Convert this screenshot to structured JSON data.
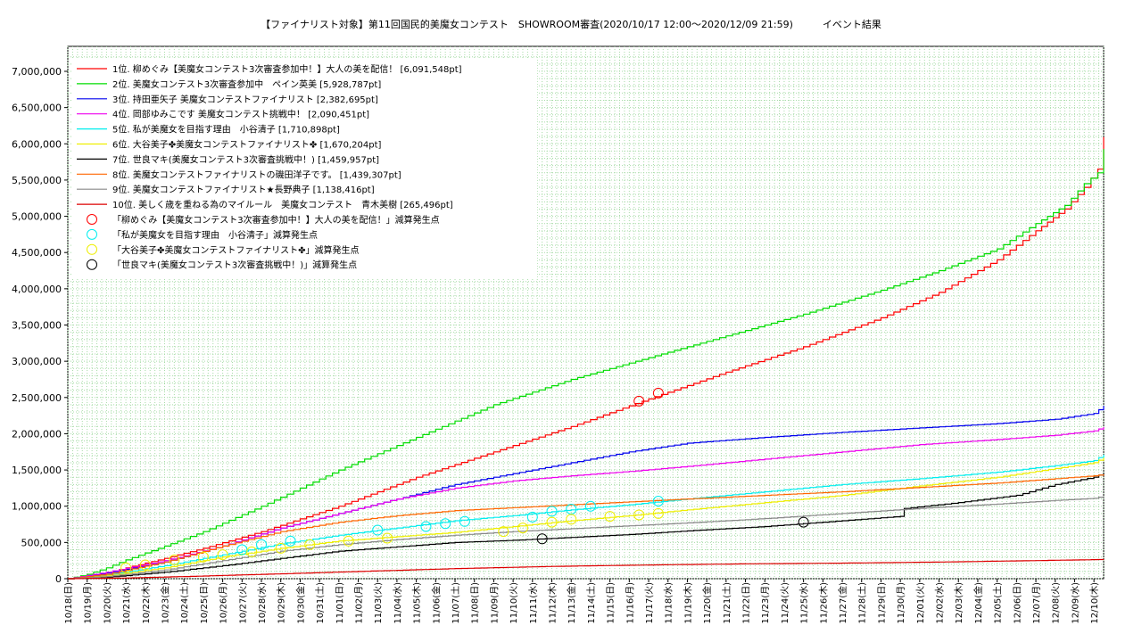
{
  "chart_data": {
    "type": "line",
    "title": "【ファイナリスト対象】第11回国民的美魔女コンテスト　SHOWROOM審査(2020/10/17 12:00〜2020/12/09 21:59)　　　イベント結果",
    "xlabel": "",
    "ylabel": "",
    "ylim": [
      0,
      7000000
    ],
    "y_ticks": [
      0,
      500000,
      1000000,
      1500000,
      2000000,
      2500000,
      3000000,
      3500000,
      4000000,
      4500000,
      5000000,
      5500000,
      6000000,
      6500000,
      7000000
    ],
    "y_tick_labels": [
      "0",
      "500,000",
      "1,000,000",
      "1,500,000",
      "2,000,000",
      "2,500,000",
      "3,000,000",
      "3,500,000",
      "4,000,000",
      "4,500,000",
      "5,000,000",
      "5,500,000",
      "6,000,000",
      "6,500,000",
      "7,000,000"
    ],
    "x_domain_days": [
      0,
      53.5
    ],
    "x_ticks": [
      "10/18(日)",
      "10/19(月)",
      "10/20(火)",
      "10/21(水)",
      "10/22(木)",
      "10/23(金)",
      "10/24(土)",
      "10/25(日)",
      "10/26(月)",
      "10/27(火)",
      "10/28(水)",
      "10/29(木)",
      "10/30(金)",
      "10/31(土)",
      "11/01(日)",
      "11/02(月)",
      "11/03(火)",
      "11/04(水)",
      "11/05(木)",
      "11/06(金)",
      "11/07(土)",
      "11/08(日)",
      "11/09(月)",
      "11/10(火)",
      "11/11(水)",
      "11/12(木)",
      "11/13(金)",
      "11/14(土)",
      "11/15(日)",
      "11/16(月)",
      "11/17(火)",
      "11/18(水)",
      "11/19(木)",
      "11/20(金)",
      "11/21(土)",
      "11/22(日)",
      "11/23(月)",
      "11/24(火)",
      "11/25(水)",
      "11/26(木)",
      "11/27(金)",
      "11/28(土)",
      "11/29(日)",
      "11/30(月)",
      "12/01(火)",
      "12/02(水)",
      "12/03(木)",
      "12/04(金)",
      "12/05(土)",
      "12/06(日)",
      "12/07(月)",
      "12/08(火)",
      "12/09(水)",
      "12/10(木)"
    ],
    "grid": true,
    "legend_position": "top-left",
    "series": [
      {
        "name": "1位. 柳めぐみ【美魔女コンテスト3次審査参加中！】大人の美を配信！ [6,091,548pt]",
        "color": "#ff0000",
        "x": [
          0.0,
          1.0,
          2.0,
          3.0,
          5.0,
          7.0,
          10.0,
          14.0,
          18.0,
          22.0,
          26.0,
          30.0,
          34.0,
          38.0,
          42.0,
          45.0,
          48.0,
          50.0,
          51.5,
          52.5,
          53.2,
          53.5
        ],
        "y": [
          0,
          30000,
          80000,
          150000,
          280000,
          420000,
          650000,
          1000000,
          1400000,
          1750000,
          2100000,
          2480000,
          2850000,
          3200000,
          3600000,
          3950000,
          4400000,
          4800000,
          5100000,
          5400000,
          5650000,
          6091548
        ]
      },
      {
        "name": "2位. 美魔女コンテスト3次審査参加中　ペイン英美 [5,928,787pt]",
        "color": "#00dd00",
        "x": [
          0.0,
          1.0,
          2.0,
          3.0,
          5.0,
          7.0,
          10.0,
          14.0,
          18.0,
          22.0,
          26.0,
          30.0,
          34.0,
          38.0,
          42.0,
          45.0,
          48.0,
          50.0,
          51.5,
          52.5,
          53.2,
          53.5
        ],
        "y": [
          0,
          60000,
          150000,
          260000,
          450000,
          650000,
          1000000,
          1500000,
          1950000,
          2400000,
          2750000,
          3050000,
          3350000,
          3650000,
          3980000,
          4250000,
          4550000,
          4900000,
          5150000,
          5450000,
          5600000,
          5928787
        ]
      },
      {
        "name": "3位. 持田亜矢子 美魔女コンテストファイナリスト [2,382,695pt]",
        "color": "#0000ee",
        "x": [
          0.0,
          2.0,
          5.0,
          8.0,
          11.0,
          14.0,
          17.0,
          20.0,
          23.0,
          26.0,
          29.0,
          32.0,
          36.0,
          40.0,
          44.0,
          48.0,
          51.0,
          53.0,
          53.5
        ],
        "y": [
          0,
          80000,
          230000,
          450000,
          700000,
          900000,
          1100000,
          1300000,
          1450000,
          1600000,
          1750000,
          1870000,
          1950000,
          2020000,
          2080000,
          2140000,
          2200000,
          2280000,
          2382695
        ]
      },
      {
        "name": "4位. 岡部ゆみこです 美魔女コンテスト挑戦中！ [2,090,451pt]",
        "color": "#ee00ee",
        "x": [
          0.0,
          2.0,
          5.0,
          8.0,
          11.0,
          14.0,
          17.0,
          20.0,
          23.0,
          26.0,
          29.0,
          32.0,
          36.0,
          40.0,
          44.0,
          48.0,
          51.0,
          53.0,
          53.5
        ],
        "y": [
          0,
          90000,
          250000,
          450000,
          700000,
          900000,
          1100000,
          1250000,
          1350000,
          1420000,
          1480000,
          1550000,
          1650000,
          1750000,
          1850000,
          1920000,
          1980000,
          2040000,
          2090451
        ]
      },
      {
        "name": "5位. 私が美魔女を目指す理由　小谷清子 [1,710,898pt]",
        "color": "#00eeee",
        "x": [
          0.0,
          2.0,
          5.0,
          8.0,
          11.0,
          14.0,
          17.0,
          20.0,
          23.0,
          26.0,
          29.0,
          32.0,
          36.0,
          40.0,
          44.0,
          48.0,
          51.0,
          53.0,
          53.5
        ],
        "y": [
          0,
          50000,
          180000,
          330000,
          480000,
          600000,
          700000,
          800000,
          870000,
          950000,
          1020000,
          1100000,
          1200000,
          1300000,
          1380000,
          1470000,
          1560000,
          1630000,
          1710898
        ]
      },
      {
        "name": "6位. 大谷美子✤美魔女コンテストファイナリスト✤ [1,670,204pt]",
        "color": "#eeee00",
        "x": [
          0.0,
          2.0,
          5.0,
          8.0,
          11.0,
          14.0,
          17.0,
          20.0,
          23.0,
          26.0,
          29.0,
          32.0,
          36.0,
          40.0,
          44.0,
          48.0,
          51.0,
          53.0,
          53.5
        ],
        "y": [
          0,
          40000,
          150000,
          300000,
          420000,
          520000,
          580000,
          640000,
          720000,
          800000,
          870000,
          950000,
          1050000,
          1150000,
          1280000,
          1400000,
          1520000,
          1600000,
          1670204
        ]
      },
      {
        "name": "7位. 世良マキ(美魔女コンテスト3次審査挑戦中！) [1,459,957pt]",
        "color": "#000000",
        "x": [
          0.0,
          2.0,
          5.0,
          8.0,
          11.0,
          14.0,
          17.0,
          20.0,
          23.0,
          26.0,
          29.0,
          32.0,
          36.0,
          40.0,
          43.0,
          43.2,
          46.0,
          49.0,
          51.0,
          53.0,
          53.5
        ],
        "y": [
          0,
          20000,
          90000,
          180000,
          280000,
          380000,
          440000,
          500000,
          530000,
          570000,
          610000,
          660000,
          720000,
          800000,
          860000,
          970000,
          1050000,
          1150000,
          1300000,
          1400000,
          1459957
        ]
      },
      {
        "name": "8位. 美魔女コンテストファイナリストの磯田洋子です。 [1,439,307pt]",
        "color": "#ff6600",
        "x": [
          0.0,
          2.0,
          5.0,
          8.0,
          11.0,
          14.0,
          17.0,
          20.0,
          23.0,
          26.0,
          29.0,
          32.0,
          36.0,
          40.0,
          44.0,
          48.0,
          51.0,
          53.0,
          53.5
        ],
        "y": [
          0,
          60000,
          230000,
          450000,
          650000,
          780000,
          870000,
          940000,
          980000,
          1020000,
          1060000,
          1100000,
          1150000,
          1200000,
          1260000,
          1320000,
          1380000,
          1420000,
          1439307
        ]
      },
      {
        "name": "9位. 美魔女コンテストファイナリスト★長野典子 [1,138,416pt]",
        "color": "#888888",
        "x": [
          0.0,
          2.0,
          5.0,
          8.0,
          11.0,
          14.0,
          17.0,
          20.0,
          23.0,
          26.0,
          29.0,
          32.0,
          36.0,
          40.0,
          44.0,
          48.0,
          51.0,
          53.0,
          53.5
        ],
        "y": [
          0,
          30000,
          120000,
          250000,
          380000,
          470000,
          540000,
          600000,
          650000,
          690000,
          730000,
          770000,
          830000,
          900000,
          970000,
          1030000,
          1080000,
          1110000,
          1138416
        ]
      },
      {
        "name": "10位. 美しく歳を重ねる為のマイルール　美魔女コンテスト　青木美樹 [265,496pt]",
        "color": "#dd0000",
        "x": [
          0.0,
          3.0,
          6.0,
          10.0,
          15.0,
          20.0,
          25.0,
          30.0,
          35.0,
          40.0,
          45.0,
          50.0,
          53.5
        ],
        "y": [
          0,
          10000,
          30000,
          60000,
          100000,
          140000,
          170000,
          190000,
          205000,
          215000,
          230000,
          250000,
          265496
        ]
      }
    ],
    "markers": [
      {
        "name": "「柳めぐみ【美魔女コンテスト3次審査参加中！】大人の美を配信！」減算発生点",
        "color": "#ff0000",
        "points": [
          [
            29.5,
            2450000
          ],
          [
            30.5,
            2560000
          ]
        ]
      },
      {
        "name": "「私が美魔女を目指す理由　小谷清子」減算発生点",
        "color": "#00eeee",
        "points": [
          [
            9.0,
            400000
          ],
          [
            10.0,
            470000
          ],
          [
            11.5,
            520000
          ],
          [
            16.0,
            670000
          ],
          [
            18.5,
            720000
          ],
          [
            19.5,
            760000
          ],
          [
            20.5,
            790000
          ],
          [
            24.0,
            850000
          ],
          [
            25.0,
            930000
          ],
          [
            26.0,
            960000
          ],
          [
            27.0,
            1000000
          ],
          [
            30.5,
            1070000
          ]
        ]
      },
      {
        "name": "「大谷美子✤美魔女コンテストファイナリスト✤」減算発生点",
        "color": "#eeee00",
        "points": [
          [
            3.0,
            150000
          ],
          [
            4.0,
            190000
          ],
          [
            5.5,
            260000
          ],
          [
            7.0,
            300000
          ],
          [
            8.0,
            330000
          ],
          [
            9.5,
            370000
          ],
          [
            11.0,
            420000
          ],
          [
            12.5,
            470000
          ],
          [
            14.5,
            520000
          ],
          [
            16.5,
            560000
          ],
          [
            22.5,
            650000
          ],
          [
            23.5,
            700000
          ],
          [
            25.0,
            780000
          ],
          [
            26.0,
            820000
          ],
          [
            28.0,
            860000
          ],
          [
            29.5,
            880000
          ],
          [
            30.5,
            900000
          ]
        ]
      },
      {
        "name": "「世良マキ(美魔女コンテスト3次審査挑戦中！)」減算発生点",
        "color": "#000000",
        "points": [
          [
            24.5,
            550000
          ],
          [
            38.0,
            780000
          ]
        ]
      }
    ]
  }
}
